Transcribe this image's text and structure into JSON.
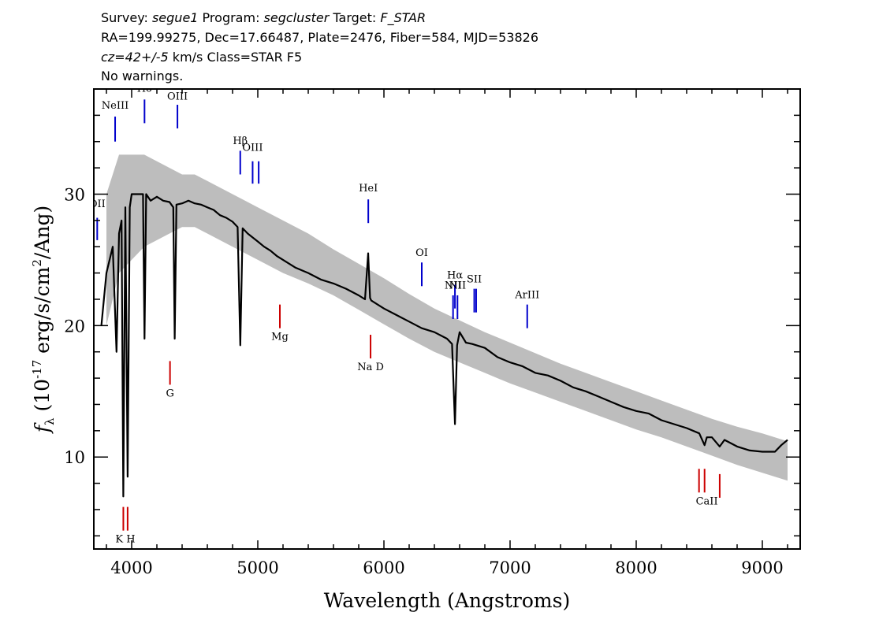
{
  "header": {
    "line1_prefix": "Survey: ",
    "survey": "segue1",
    "line1_mid1": " Program: ",
    "program": "segcluster",
    "line1_mid2": " Target: ",
    "target": "F_STAR",
    "line2": "RA=199.99275, Dec=17.66487, Plate=2476, Fiber=584, MJD=53826",
    "cz": "cz=42+/-5",
    "line3_rest": " km/s Class=STAR F5",
    "line4": "No warnings."
  },
  "chart_data": {
    "type": "line",
    "xlabel": "Wavelength (Angstroms)",
    "ylabel_main": "f",
    "ylabel_sub": "λ",
    "ylabel_unit_prefix": " (10",
    "ylabel_exp1": "-17",
    "ylabel_unit_mid": " erg/s/cm",
    "ylabel_exp2": "2",
    "ylabel_unit_suffix": "/Ang)",
    "xlim": [
      3700,
      9300
    ],
    "ylim": [
      3,
      38
    ],
    "x_ticks": [
      4000,
      5000,
      6000,
      7000,
      8000,
      9000
    ],
    "y_ticks": [
      10,
      20,
      30
    ],
    "series": [
      {
        "role": "error-band",
        "color": "#bdbdbd",
        "x": [
          3800,
          3900,
          4000,
          4100,
          4200,
          4300,
          4400,
          4500,
          4600,
          4700,
          4800,
          5000,
          5200,
          5400,
          5600,
          5800,
          6000,
          6200,
          6400,
          6600,
          6800,
          7000,
          7200,
          7400,
          7600,
          7800,
          8000,
          8200,
          8400,
          8600,
          8800,
          9000,
          9200
        ],
        "y_low": [
          20,
          24,
          25,
          26,
          26.5,
          27,
          27.5,
          27.5,
          27,
          26.5,
          26,
          25,
          24,
          23.2,
          22.3,
          21.2,
          20.1,
          19,
          18,
          17.2,
          16.4,
          15.6,
          14.9,
          14.2,
          13.5,
          12.8,
          12.1,
          11.5,
          10.8,
          10.1,
          9.4,
          8.8,
          8.2
        ],
        "y_high": [
          30,
          33,
          33,
          33,
          32.5,
          32,
          31.5,
          31.5,
          31,
          30.5,
          30,
          29,
          28,
          27,
          25.8,
          24.7,
          23.6,
          22.4,
          21.3,
          20.4,
          19.5,
          18.7,
          17.9,
          17.1,
          16.4,
          15.7,
          15,
          14.3,
          13.6,
          12.9,
          12.3,
          11.8,
          11.2
        ]
      },
      {
        "role": "flux",
        "color": "#000000",
        "x": [
          3760,
          3800,
          3850,
          3880,
          3900,
          3920,
          3934,
          3950,
          3968,
          3985,
          4000,
          4050,
          4090,
          4102,
          4115,
          4150,
          4200,
          4250,
          4300,
          4330,
          4341,
          4355,
          4400,
          4450,
          4500,
          4550,
          4600,
          4650,
          4700,
          4750,
          4800,
          4840,
          4861,
          4880,
          4920,
          5000,
          5050,
          5100,
          5150,
          5200,
          5250,
          5300,
          5400,
          5500,
          5600,
          5700,
          5800,
          5850,
          5875,
          5890,
          5900,
          6000,
          6100,
          6200,
          6300,
          6400,
          6500,
          6540,
          6563,
          6580,
          6600,
          6650,
          6700,
          6800,
          6900,
          7000,
          7100,
          7200,
          7300,
          7400,
          7500,
          7600,
          7700,
          7800,
          7900,
          8000,
          8100,
          8200,
          8300,
          8400,
          8500,
          8542,
          8560,
          8600,
          8662,
          8700,
          8800,
          8900,
          9000,
          9100,
          9150,
          9200
        ],
        "y": [
          20,
          24,
          26,
          18,
          27,
          28,
          7,
          29,
          8.5,
          29,
          30,
          30,
          30,
          19,
          30,
          29.5,
          29.8,
          29.5,
          29.4,
          29,
          19,
          29.2,
          29.3,
          29.5,
          29.3,
          29.2,
          29,
          28.8,
          28.4,
          28.2,
          27.9,
          27.5,
          18.5,
          27.4,
          27,
          26.4,
          26,
          25.7,
          25.3,
          25,
          24.7,
          24.4,
          24,
          23.5,
          23.2,
          22.8,
          22.3,
          22,
          25.5,
          22.1,
          21.9,
          21.3,
          20.8,
          20.3,
          19.8,
          19.5,
          19,
          18.6,
          12.5,
          18.5,
          19.5,
          18.7,
          18.6,
          18.3,
          17.6,
          17.2,
          16.9,
          16.4,
          16.2,
          15.8,
          15.3,
          15,
          14.6,
          14.2,
          13.8,
          13.5,
          13.3,
          12.8,
          12.5,
          12.2,
          11.8,
          10.9,
          11.5,
          11.5,
          10.8,
          11.3,
          10.8,
          10.5,
          10.4,
          10.4,
          10.9,
          11.3
        ]
      }
    ],
    "emission_lines": [
      {
        "label": "OII",
        "wave": 3727,
        "y0": 26.5,
        "y1": 28.2,
        "label_y": 29.0,
        "color": "#0000cc"
      },
      {
        "label": "NeIII",
        "wave": 3869,
        "y0": 34.0,
        "y1": 35.9,
        "label_y": 36.5,
        "color": "#0000cc"
      },
      {
        "label": "Hδ",
        "wave": 4102,
        "y0": 35.4,
        "y1": 37.2,
        "label_y": 37.8,
        "color": "#0000cc"
      },
      {
        "label": "OIII",
        "wave": 4363,
        "y0": 35.0,
        "y1": 36.8,
        "label_y": 37.2,
        "color": "#0000cc"
      },
      {
        "label": "Hβ",
        "wave": 4861,
        "y0": 31.5,
        "y1": 33.3,
        "label_y": 33.8,
        "color": "#0000cc"
      },
      {
        "label": "OIII",
        "wave": 4959,
        "y0": 30.8,
        "y1": 32.5,
        "label_y": 33.3,
        "color": "#0000cc"
      },
      {
        "label": "",
        "wave": 5007,
        "y0": 30.8,
        "y1": 32.5,
        "label_y": 0,
        "color": "#0000cc"
      },
      {
        "label": "HeI",
        "wave": 5876,
        "y0": 27.8,
        "y1": 29.6,
        "label_y": 30.2,
        "color": "#0000cc"
      },
      {
        "label": "OI",
        "wave": 6300,
        "y0": 23.0,
        "y1": 24.8,
        "label_y": 25.3,
        "color": "#0000cc"
      },
      {
        "label": "NII",
        "wave": 6548,
        "y0": 20.5,
        "y1": 22.3,
        "label_y": 22.8,
        "color": "#0000cc"
      },
      {
        "label": "Hα",
        "wave": 6563,
        "y0": 21.3,
        "y1": 23.1,
        "label_y": 23.6,
        "color": "#0000cc"
      },
      {
        "label": "NII",
        "wave": 6583,
        "y0": 20.5,
        "y1": 22.3,
        "label_y": 22.8,
        "color": "#0000cc"
      },
      {
        "label": "SII",
        "wave": 6716,
        "y0": 21.0,
        "y1": 22.8,
        "label_y": 23.3,
        "color": "#0000cc"
      },
      {
        "label": "",
        "wave": 6731,
        "y0": 21.0,
        "y1": 22.8,
        "label_y": 0,
        "color": "#0000cc"
      },
      {
        "label": "ArIII",
        "wave": 7136,
        "y0": 19.8,
        "y1": 21.6,
        "label_y": 22.1,
        "color": "#0000cc"
      }
    ],
    "absorption_lines": [
      {
        "label": "",
        "wave": 3934,
        "y0": 4.4,
        "y1": 6.2,
        "color": "#cc0000"
      },
      {
        "label": "K H",
        "wave": 3968,
        "y0": 4.4,
        "y1": 6.2,
        "label_y": 3.5,
        "label_wave": 3950,
        "color": "#cc0000"
      },
      {
        "label": "G",
        "wave": 4304,
        "y0": 15.5,
        "y1": 17.3,
        "label_y": 14.6,
        "color": "#cc0000"
      },
      {
        "label": "Mg",
        "wave": 5175,
        "y0": 19.8,
        "y1": 21.6,
        "label_y": 18.9,
        "color": "#cc0000"
      },
      {
        "label": "Na D",
        "wave": 5894,
        "y0": 17.5,
        "y1": 19.3,
        "label_y": 16.6,
        "color": "#cc0000"
      },
      {
        "label": "",
        "wave": 8498,
        "y0": 7.3,
        "y1": 9.1,
        "color": "#cc0000"
      },
      {
        "label": "CaII",
        "wave": 8542,
        "y0": 7.3,
        "y1": 9.1,
        "label_y": 6.4,
        "label_wave": 8560,
        "color": "#cc0000"
      },
      {
        "label": "",
        "wave": 8662,
        "y0": 6.9,
        "y1": 8.7,
        "color": "#cc0000"
      }
    ]
  }
}
